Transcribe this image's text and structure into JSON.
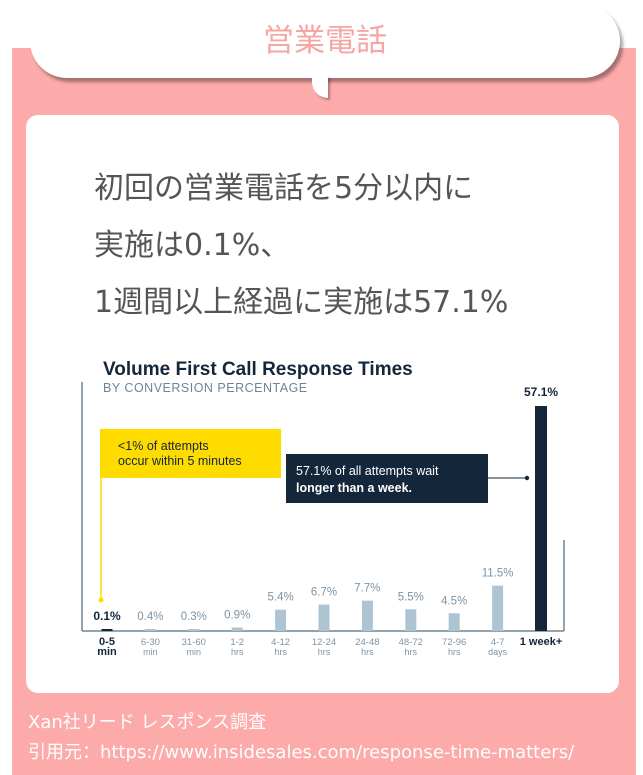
{
  "header": {
    "title": "営業電話"
  },
  "headline": [
    "初回の営業電話を5分以内に",
    "実施は0.1%、",
    "1週間以上経過に実施は57.1%"
  ],
  "chart_data": {
    "type": "bar",
    "title": "Volume First Call Response Times",
    "subtitle": "BY CONVERSION PERCENTAGE",
    "categories": [
      [
        "0-5",
        "min"
      ],
      [
        "6-30",
        "min"
      ],
      [
        "31-60",
        "min"
      ],
      [
        "1-2",
        "hrs"
      ],
      [
        "4-12",
        "hrs"
      ],
      [
        "12-24",
        "hrs"
      ],
      [
        "24-48",
        "hrs"
      ],
      [
        "48-72",
        "hrs"
      ],
      [
        "72-96",
        "hrs"
      ],
      [
        "4-7",
        "days"
      ],
      [
        "1 week+",
        ""
      ]
    ],
    "values": [
      0.1,
      0.4,
      0.3,
      0.9,
      5.4,
      6.7,
      7.7,
      5.5,
      4.5,
      11.5,
      57.1
    ],
    "labels": [
      "0.1%",
      "0.4%",
      "0.3%",
      "0.9%",
      "5.4%",
      "6.7%",
      "7.7%",
      "5.5%",
      "4.5%",
      "11.5%",
      "57.1%"
    ],
    "ylim": [
      0,
      60
    ],
    "colors": {
      "highlight": "#14263A",
      "normal": "#AFC4D2",
      "callout_yellow": "#FFDC00"
    },
    "annotations": [
      {
        "lines": [
          "<1% of attempts",
          "occur within 5 minutes"
        ],
        "bold_prefix": "<1%",
        "target": "0-5"
      },
      {
        "lines": [
          "57.1% of all attempts wait",
          "longer than a week."
        ],
        "target": "1 week+"
      }
    ]
  },
  "source": {
    "line1": "Xan社リード レスポンス調査",
    "line2": "引用元：https://www.insidesales.com/response-time-matters/"
  }
}
